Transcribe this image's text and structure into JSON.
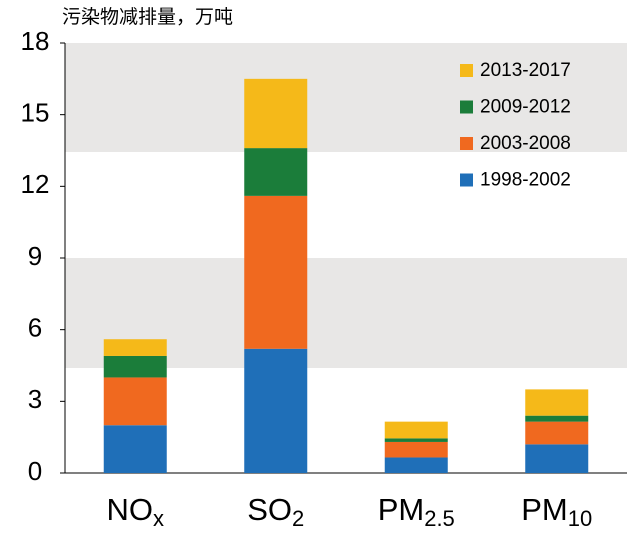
{
  "chart_data": {
    "type": "stacked_bar",
    "title": "污染物减排量，万吨",
    "categories": [
      "NOx",
      "SO2",
      "PM2.5",
      "PM10"
    ],
    "series": [
      {
        "name": "1998-2002",
        "color": "#1f6fb8",
        "values": [
          2.0,
          5.2,
          0.65,
          1.2
        ]
      },
      {
        "name": "2003-2008",
        "color": "#f0691f",
        "values": [
          2.0,
          6.4,
          0.65,
          0.95
        ]
      },
      {
        "name": "2009-2012",
        "color": "#1b7d3a",
        "values": [
          0.9,
          2.0,
          0.15,
          0.25
        ]
      },
      {
        "name": "2013-2017",
        "color": "#f5b919",
        "values": [
          0.7,
          2.9,
          0.7,
          1.1
        ]
      }
    ],
    "ylim": [
      0,
      18
    ],
    "yticks": [
      0,
      3,
      6,
      9,
      12,
      15,
      18
    ],
    "legend": "upper right"
  }
}
